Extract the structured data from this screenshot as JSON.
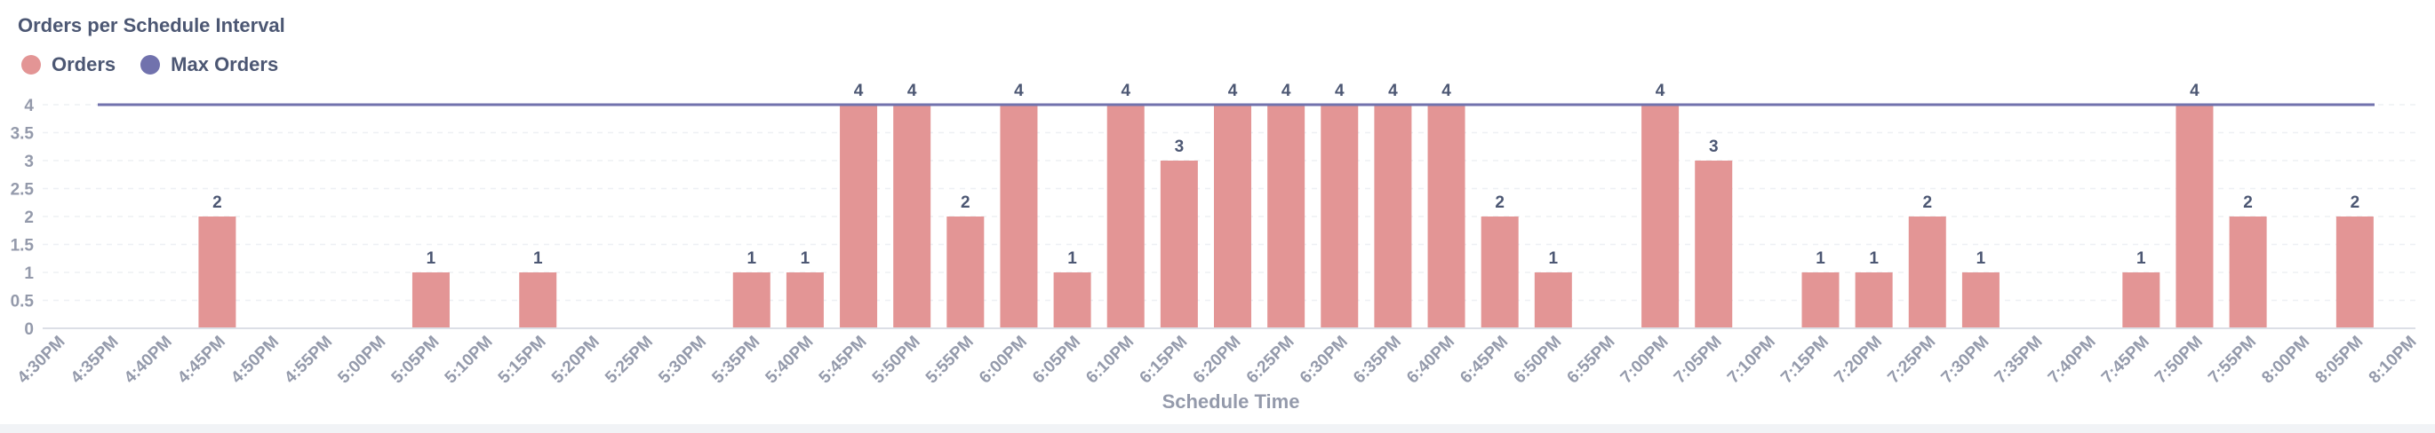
{
  "page": {
    "title": "Orders per Schedule Interval"
  },
  "legend": [
    {
      "name": "Orders",
      "color": "#e39595"
    },
    {
      "name": "Max Orders",
      "color": "#7172ad"
    }
  ],
  "chart_data": {
    "type": "bar",
    "title": "Orders per Schedule Interval",
    "xlabel": "Schedule Time",
    "ylabel": "",
    "ylim": [
      0,
      4
    ],
    "yticks": [
      "0",
      "0.5",
      "1",
      "1.5",
      "2",
      "2.5",
      "3",
      "3.5",
      "4"
    ],
    "grid": true,
    "legend_position": "top-left",
    "categories": [
      "4:30PM",
      "4:35PM",
      "4:40PM",
      "4:45PM",
      "4:50PM",
      "4:55PM",
      "5:00PM",
      "5:05PM",
      "5:10PM",
      "5:15PM",
      "5:20PM",
      "5:25PM",
      "5:30PM",
      "5:35PM",
      "5:40PM",
      "5:45PM",
      "5:50PM",
      "5:55PM",
      "6:00PM",
      "6:05PM",
      "6:10PM",
      "6:15PM",
      "6:20PM",
      "6:25PM",
      "6:30PM",
      "6:35PM",
      "6:40PM",
      "6:45PM",
      "6:50PM",
      "6:55PM",
      "7:00PM",
      "7:05PM",
      "7:10PM",
      "7:15PM",
      "7:20PM",
      "7:25PM",
      "7:30PM",
      "7:35PM",
      "7:40PM",
      "7:45PM",
      "7:50PM",
      "7:55PM",
      "8:00PM",
      "8:05PM",
      "8:10PM"
    ],
    "series": [
      {
        "name": "Orders",
        "type": "bar",
        "color": "#e39595",
        "values": [
          0,
          0,
          0,
          2,
          0,
          0,
          0,
          1,
          0,
          1,
          0,
          0,
          0,
          1,
          1,
          4,
          4,
          2,
          4,
          1,
          4,
          3,
          4,
          4,
          4,
          4,
          4,
          2,
          1,
          0,
          4,
          3,
          0,
          1,
          1,
          2,
          1,
          0,
          0,
          1,
          4,
          2,
          0,
          2,
          0
        ]
      },
      {
        "name": "Max Orders",
        "type": "line",
        "color": "#7172ad",
        "value": 4
      }
    ]
  }
}
